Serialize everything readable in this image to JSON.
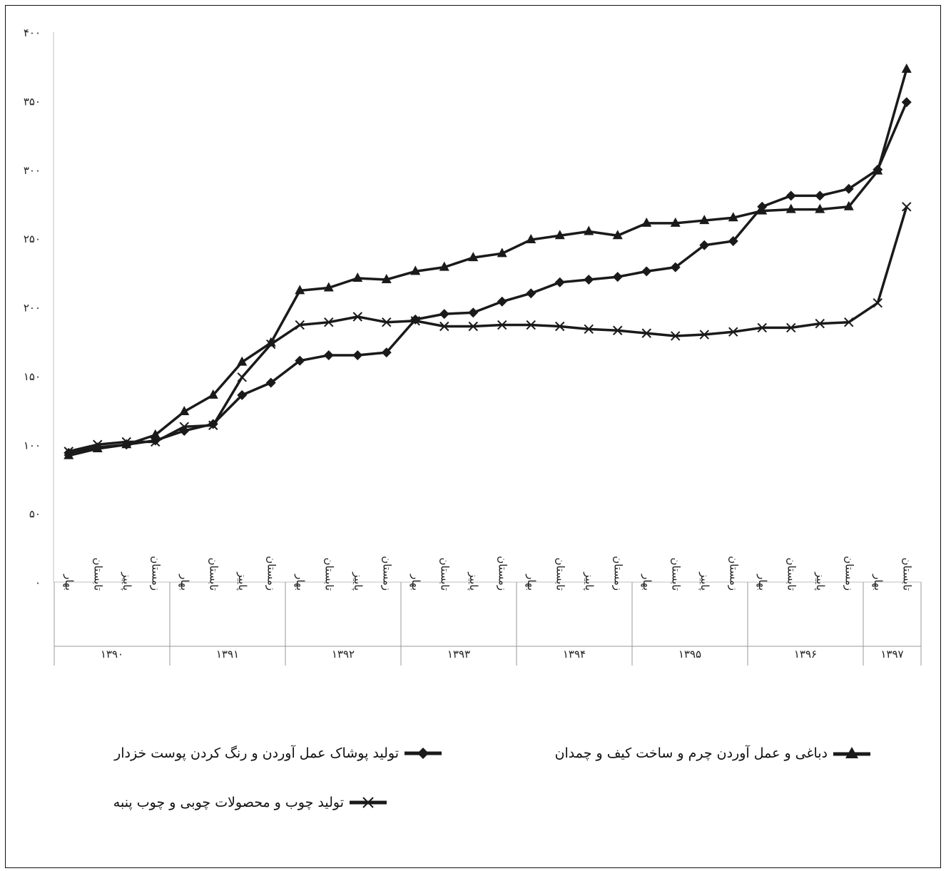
{
  "chart_data": {
    "type": "line",
    "ylim": [
      0,
      400
    ],
    "y_ticks": [
      "۰",
      "۵۰",
      "۱۰۰",
      "۱۵۰",
      "۲۰۰",
      "۲۵۰",
      "۳۰۰",
      "۳۵۰",
      "۴۰۰"
    ],
    "grid": false,
    "legend_position": "bottom",
    "categories": [
      "۱۳۹۰ بهار",
      "۱۳۹۰ تابستان",
      "۱۳۹۰ پاییز",
      "۱۳۹۰ زمستان",
      "۱۳۹۱ بهار",
      "۱۳۹۱ تابستان",
      "۱۳۹۱ پاییز",
      "۱۳۹۱ زمستان",
      "۱۳۹۲ بهار",
      "۱۳۹۲ تابستان",
      "۱۳۹۲ پاییز",
      "۱۳۹۲ زمستان",
      "۱۳۹۳ بهار",
      "۱۳۹۳ تابستان",
      "۱۳۹۳ پاییز",
      "۱۳۹۳ زمستان",
      "۱۳۹۴ بهار",
      "۱۳۹۴ تابستان",
      "۱۳۹۴ پاییز",
      "۱۳۹۴ زمستان",
      "۱۳۹۵ بهار",
      "۱۳۹۵ تابستان",
      "۱۳۹۵ پاییز",
      "۱۳۹۵ زمستان",
      "۱۳۹۶ بهار",
      "۱۳۹۶ تابستان",
      "۱۳۹۶ پاییز",
      "۱۳۹۶ زمستان",
      "۱۳۹۷ بهار",
      "۱۳۹۷ تابستان"
    ],
    "season_labels": [
      "بهار",
      "تابستان",
      "پاییز",
      "زمستان",
      "بهار",
      "تابستان",
      "پاییز",
      "زمستان",
      "بهار",
      "تابستان",
      "پاییز",
      "زمستان",
      "بهار",
      "تابستان",
      "پاییز",
      "زمستان",
      "بهار",
      "تابستان",
      "پاییز",
      "زمستان",
      "بهار",
      "تابستان",
      "پاییز",
      "زمستان",
      "بهار",
      "تابستان",
      "پاییز",
      "زمستان",
      "بهار",
      "تابستان"
    ],
    "year_groups": [
      {
        "label": "۱۳۹۰",
        "count": 4
      },
      {
        "label": "۱۳۹۱",
        "count": 4
      },
      {
        "label": "۱۳۹۲",
        "count": 4
      },
      {
        "label": "۱۳۹۳",
        "count": 4
      },
      {
        "label": "۱۳۹۴",
        "count": 4
      },
      {
        "label": "۱۳۹۵",
        "count": 4
      },
      {
        "label": "۱۳۹۶",
        "count": 4
      },
      {
        "label": "۱۳۹۷",
        "count": 2
      }
    ],
    "series": [
      {
        "name": "تولید پوشاک عمل آوردن و رنگ کردن پوست خزدار",
        "marker": "diamond",
        "color": "#1a1a1a",
        "values": [
          94,
          98,
          100,
          103,
          110,
          115,
          136,
          145,
          161,
          165,
          165,
          167,
          191,
          195,
          196,
          204,
          210,
          218,
          220,
          222,
          226,
          229,
          245,
          248,
          273,
          281,
          281,
          286,
          300,
          349
        ]
      },
      {
        "name": "دباغی و عمل آوردن چرم و ساخت کیف و چمدان",
        "marker": "triangle",
        "color": "#1a1a1a",
        "values": [
          92,
          97,
          100,
          107,
          124,
          136,
          160,
          174,
          212,
          214,
          221,
          220,
          226,
          229,
          236,
          239,
          249,
          252,
          255,
          252,
          261,
          261,
          263,
          265,
          270,
          271,
          271,
          273,
          299,
          373
        ]
      },
      {
        "name": "تولید چوب و محصولات چوبی و چوب پنبه",
        "marker": "x",
        "color": "#1a1a1a",
        "values": [
          95,
          100,
          102,
          102,
          113,
          114,
          149,
          173,
          187,
          189,
          193,
          189,
          190,
          186,
          186,
          187,
          187,
          186,
          184,
          183,
          181,
          179,
          180,
          182,
          185,
          185,
          188,
          189,
          203,
          273
        ]
      }
    ]
  }
}
